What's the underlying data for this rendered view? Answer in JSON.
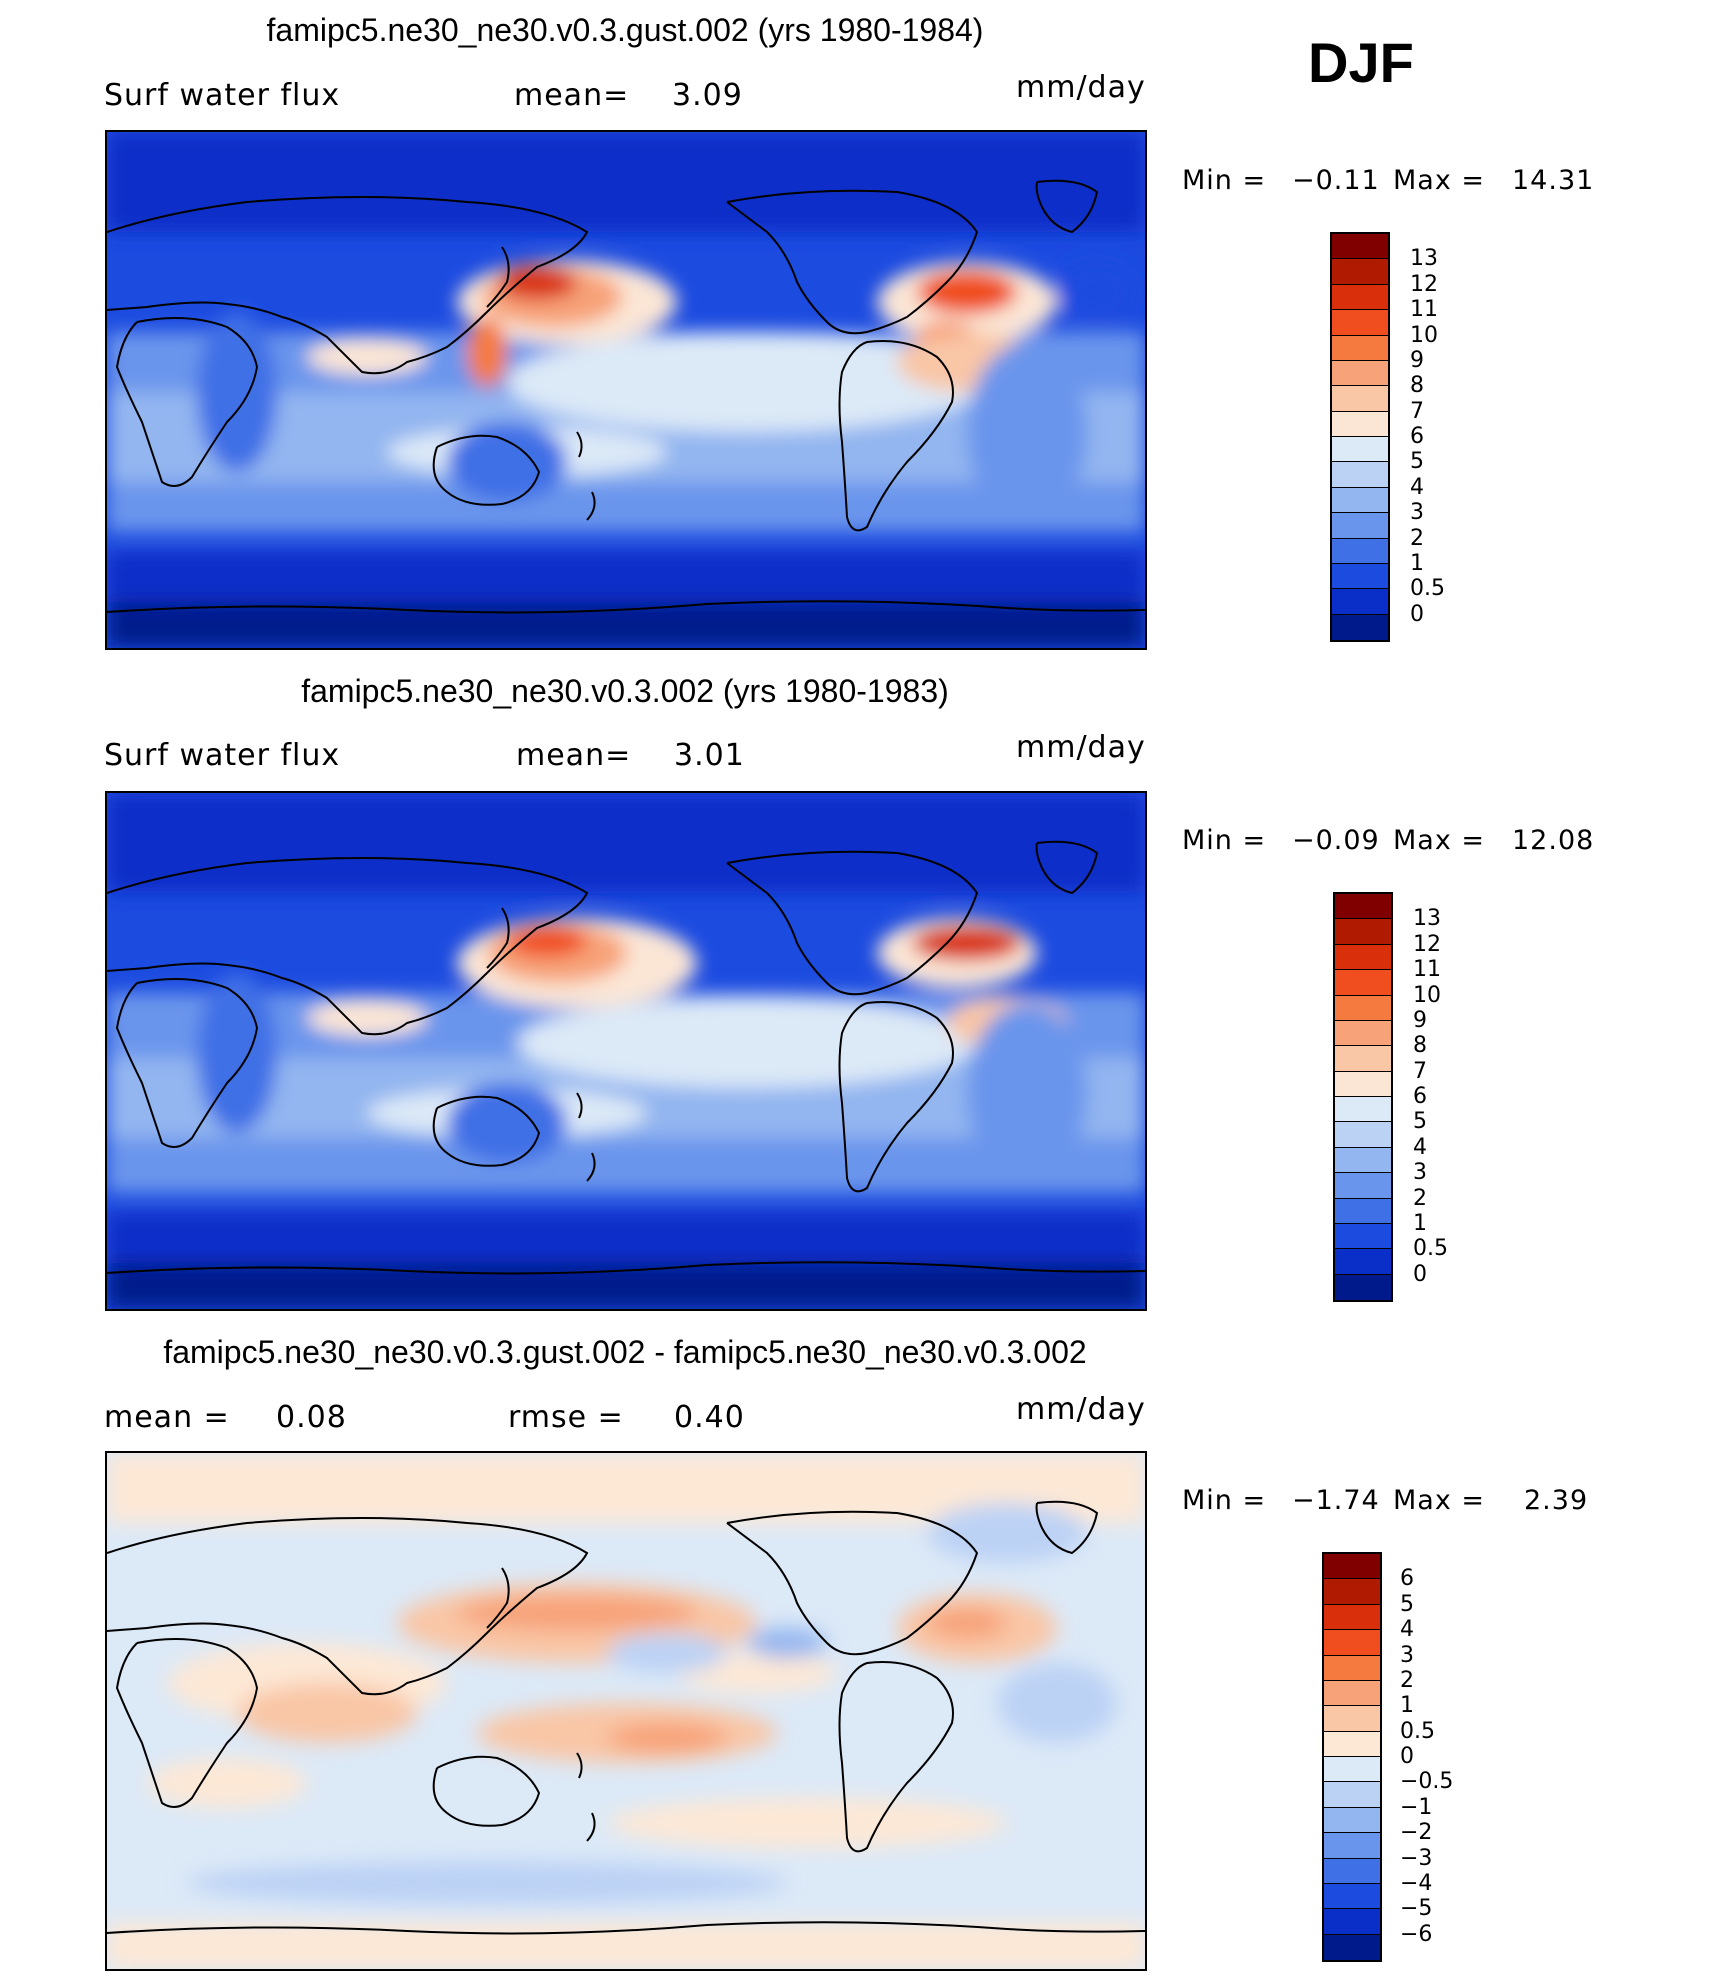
{
  "season": "DJF",
  "panels": [
    {
      "title": "famipc5.ne30_ne30.v0.3.gust.002 (yrs 1980-1984)",
      "left_label": "Surf water flux",
      "mid_label": "mean=",
      "mid_value": "3.09",
      "units": "mm/day",
      "min_label": "Min =",
      "min_value": "−0.11",
      "max_label": "Max =",
      "max_value": "14.31",
      "levels": [
        "13",
        "12",
        "11",
        "10",
        "9",
        "8",
        "7",
        "6",
        "5",
        "4",
        "3",
        "2",
        "1",
        "0.5",
        "0"
      ],
      "colors": [
        "#800000",
        "#b01b00",
        "#d9300b",
        "#f04e1f",
        "#f57a40",
        "#f7a278",
        "#f9c6a6",
        "#fbe6d6",
        "#dce9f7",
        "#bcd2f5",
        "#93b5f0",
        "#6a95ec",
        "#3f70e6",
        "#1c4be0",
        "#0a2ec8",
        "#001a8c"
      ]
    },
    {
      "title": "famipc5.ne30_ne30.v0.3.002 (yrs 1980-1983)",
      "left_label": "Surf water flux",
      "mid_label": "mean=",
      "mid_value": "3.01",
      "units": "mm/day",
      "min_label": "Min =",
      "min_value": "−0.09",
      "max_label": "Max =",
      "max_value": "12.08",
      "levels": [
        "13",
        "12",
        "11",
        "10",
        "9",
        "8",
        "7",
        "6",
        "5",
        "4",
        "3",
        "2",
        "1",
        "0.5",
        "0"
      ],
      "colors": [
        "#800000",
        "#b01b00",
        "#d9300b",
        "#f04e1f",
        "#f57a40",
        "#f7a278",
        "#f9c6a6",
        "#fbe6d6",
        "#dce9f7",
        "#bcd2f5",
        "#93b5f0",
        "#6a95ec",
        "#3f70e6",
        "#1c4be0",
        "#0a2ec8",
        "#001a8c"
      ]
    },
    {
      "title": "famipc5.ne30_ne30.v0.3.gust.002 - famipc5.ne30_ne30.v0.3.002",
      "left_label": "mean =",
      "left_value": "0.08",
      "mid_label": "rmse =",
      "mid_value": "0.40",
      "units": "mm/day",
      "min_label": "Min =",
      "min_value": "−1.74",
      "max_label": "Max =",
      "max_value": "2.39",
      "levels": [
        "6",
        "5",
        "4",
        "3",
        "2",
        "1",
        "0.5",
        "0",
        "−0.5",
        "−1",
        "−2",
        "−3",
        "−4",
        "−5",
        "−6"
      ],
      "colors": [
        "#800000",
        "#b01b00",
        "#d9300b",
        "#f04e1f",
        "#f57a40",
        "#f7a278",
        "#f9c6a6",
        "#fde8d6",
        "#dce9f7",
        "#bcd2f5",
        "#93b5f0",
        "#6a95ec",
        "#3f70e6",
        "#1c4be0",
        "#0a2ec8",
        "#001a8c"
      ]
    }
  ]
}
